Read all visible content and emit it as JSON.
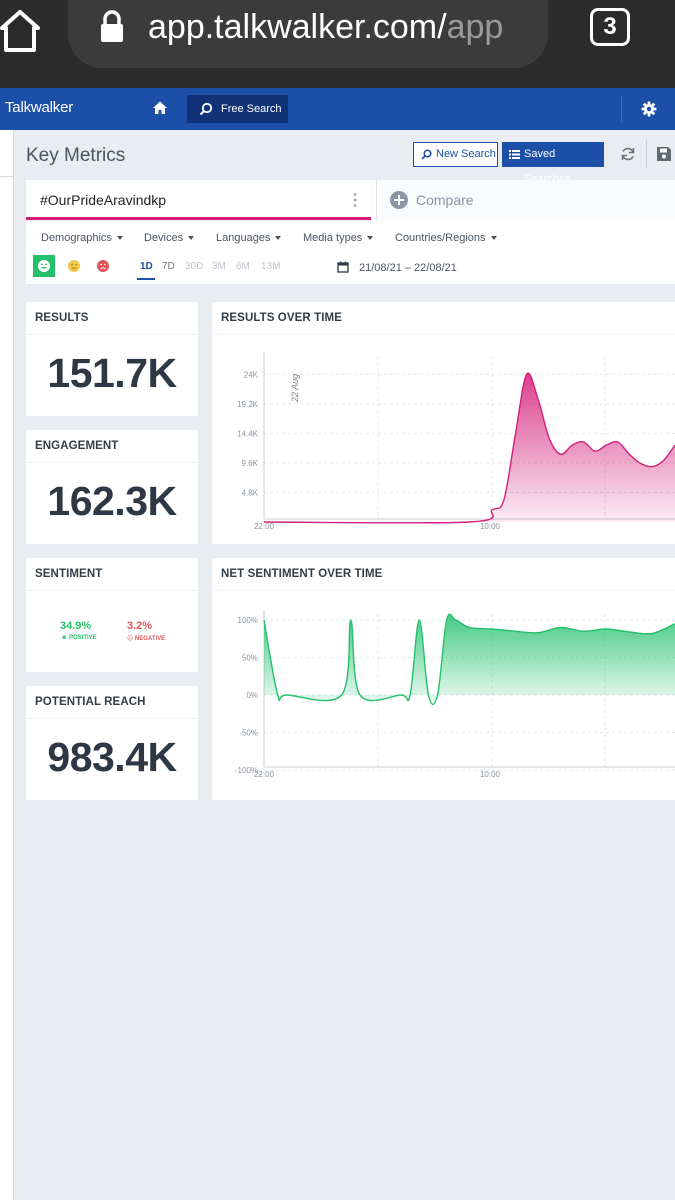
{
  "browser": {
    "url_main": "app.talkwalker.com/",
    "url_dim": "app",
    "tab_count": "3"
  },
  "header": {
    "brand": "Talkwalker",
    "free_search_label": "Free Search"
  },
  "toolbar": {
    "title": "Key Metrics",
    "new_search_label": "New Search",
    "saved_searches_label": "Saved Searches"
  },
  "query": {
    "text": "#OurPrideAravindkp",
    "compare_label": "Compare"
  },
  "filters": [
    "Demographics",
    "Devices",
    "Languages",
    "Media types",
    "Countries/Regions"
  ],
  "time_ranges": [
    "1D",
    "7D",
    "30D",
    "3M",
    "6M",
    "13M"
  ],
  "active_range": "1D",
  "date_range": "21/08/21 – 22/08/21",
  "colors": {
    "brand_blue": "#1b4fa8",
    "results_pink": "#d41f7b",
    "positive_green": "#24c16c",
    "negative_red": "#e0545a"
  },
  "metrics": {
    "results": {
      "title": "RESULTS",
      "value": "151.7K"
    },
    "engagement": {
      "title": "ENGAGEMENT",
      "value": "162.3K"
    },
    "sentiment": {
      "title": "SENTIMENT",
      "positive_value": "34.9%",
      "positive_label": "POSITIVE",
      "negative_value": "3.2%",
      "negative_label": "NEGATIVE"
    },
    "potential_reach": {
      "title": "POTENTIAL REACH",
      "value": "983.4K"
    }
  },
  "chart_data": [
    {
      "type": "area",
      "title": "RESULTS OVER TIME",
      "x_tick_labels": [
        "22:00",
        "10:00"
      ],
      "y_tick_labels": [
        "4.8K",
        "9.6K",
        "14.4K",
        "19.2K",
        "24K"
      ],
      "ylim": [
        0,
        26000
      ],
      "annotation": "22 Aug",
      "color": "#d41f7b",
      "x": [
        0,
        9,
        10,
        10.5,
        11,
        11.5,
        12,
        12.5,
        13,
        13.5,
        14,
        14.5,
        15,
        15.5,
        16,
        16.5,
        17,
        17.5,
        18
      ],
      "values": [
        0,
        0,
        2000,
        3500,
        14000,
        24000,
        20000,
        13500,
        11000,
        12500,
        13000,
        11500,
        12500,
        13000,
        11000,
        9500,
        9000,
        10000,
        12500
      ]
    },
    {
      "type": "area",
      "title": "NET SENTIMENT OVER TIME",
      "x_tick_labels": [
        "22:00",
        "10:00"
      ],
      "y_tick_labels": [
        "100%",
        "50%",
        "0%",
        "-50%",
        "-100%"
      ],
      "ylim": [
        -100,
        100
      ],
      "color": "#24c16c",
      "x": [
        0,
        0.6,
        1,
        3.4,
        3.8,
        4.2,
        6,
        6.4,
        6.8,
        7.2,
        7.6,
        8,
        8.4,
        9,
        10,
        11,
        12,
        13,
        14,
        15,
        16,
        17,
        18
      ],
      "values": [
        100,
        0,
        0,
        0,
        100,
        0,
        0,
        0,
        100,
        0,
        0,
        100,
        100,
        90,
        88,
        85,
        83,
        90,
        85,
        88,
        84,
        82,
        95
      ]
    }
  ]
}
